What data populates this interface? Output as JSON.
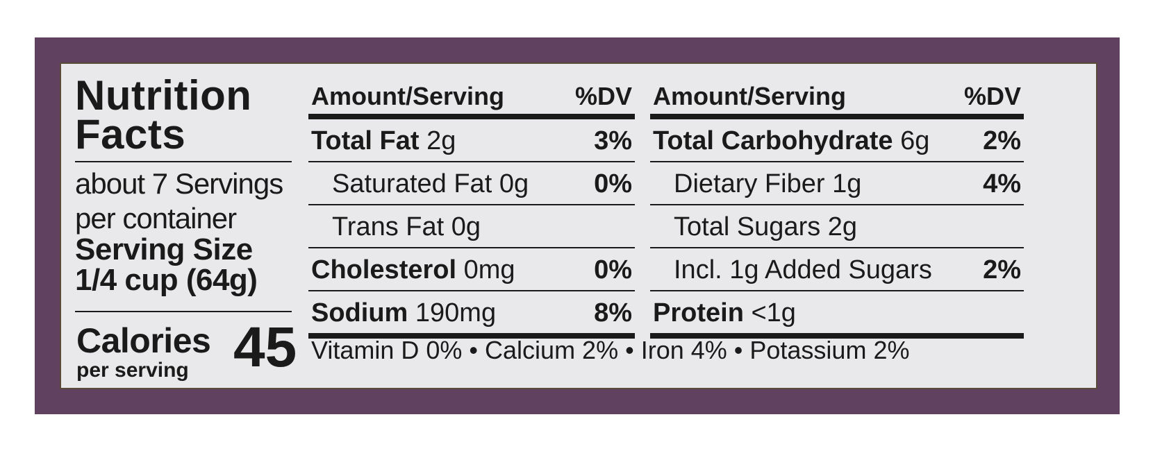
{
  "title": [
    "Nutrition",
    "Facts"
  ],
  "servings": [
    "about 7 Servings",
    "per container"
  ],
  "serving_size": {
    "label": "Serving Size",
    "value": "1/4 cup (64g)"
  },
  "calories": {
    "label": "Calories",
    "sub": "per serving",
    "value": "45"
  },
  "left_table": {
    "header": "Amount/Serving",
    "dv": "%DV",
    "rows": [
      {
        "name": "Total Fat",
        "amount": "2g",
        "dv": "3%"
      },
      {
        "name": "Saturated Fat",
        "amount": "0g",
        "dv": "0%"
      },
      {
        "name": "Trans Fat",
        "amount": "0g",
        "dv": ""
      },
      {
        "name": "Cholesterol",
        "amount": "0mg",
        "dv": "0%"
      },
      {
        "name": "Sodium",
        "amount": "190mg",
        "dv": "8%"
      }
    ]
  },
  "right_table": {
    "header": "Amount/Serving",
    "dv": "%DV",
    "rows": [
      {
        "name": "Total Carbohydrate",
        "amount": "6g",
        "dv": "2%"
      },
      {
        "name": "Dietary Fiber",
        "amount": "1g",
        "dv": "4%"
      },
      {
        "name": "Total Sugars",
        "amount": "2g",
        "dv": ""
      },
      {
        "name": "Incl. 1g Added Sugars",
        "amount": "",
        "dv": "2%"
      },
      {
        "name": "Protein",
        "amount": "<1g",
        "dv": ""
      }
    ]
  },
  "vitamins": "Vitamin D 0% • Calcium 2% • Iron 4% • Potassium 2%",
  "colors": {
    "frame": "#60415f",
    "panel": "#e9e8ea",
    "ink": "#1a1a1a"
  }
}
